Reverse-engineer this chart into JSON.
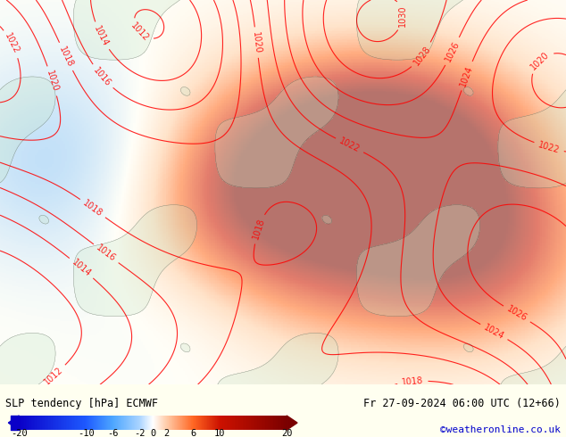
{
  "title_left": "SLP tendency [hPa] ECMWF",
  "title_right": "Fr 27-09-2024 06:00 UTC (12+66)",
  "watermark": "©weatheronline.co.uk",
  "colorbar_ticks": [
    -20,
    -10,
    -6,
    -2,
    0,
    2,
    6,
    10,
    20
  ],
  "colorbar_colors": [
    "#0a00c8",
    "#1e5aff",
    "#4da6ff",
    "#aad4ff",
    "#ffffff",
    "#ffccaa",
    "#ff6622",
    "#cc1100",
    "#7a0000"
  ],
  "bg_color": "#fffff0",
  "map_bg": "#fffff0",
  "text_color": "#000000",
  "left_label_color": "#000000",
  "right_label_color": "#000000",
  "watermark_color": "#0000cc",
  "fig_width": 6.34,
  "fig_height": 4.9,
  "dpi": 100
}
